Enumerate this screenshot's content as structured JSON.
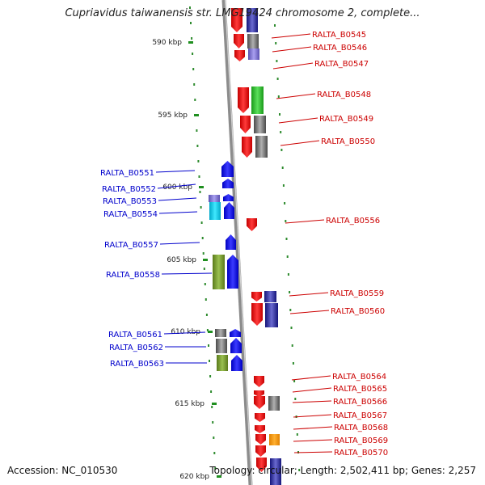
{
  "title": "Cupriavidus taiwanensis str. LMG19424 chromosome 2, complete...",
  "footer": {
    "accession": "Accession: NC_010530",
    "summary": "Topology: circular; Length: 2,502,411 bp; Genes: 2,257"
  },
  "scale_ticks": [
    {
      "label": "590 kbp",
      "kbp": 590
    },
    {
      "label": "595 kbp",
      "kbp": 595
    },
    {
      "label": "600 kbp",
      "kbp": 600
    },
    {
      "label": "605 kbp",
      "kbp": 605
    },
    {
      "label": "610 kbp",
      "kbp": 610
    },
    {
      "label": "615 kbp",
      "kbp": 615
    },
    {
      "label": "620 kbp",
      "kbp": 620
    }
  ],
  "colors": {
    "forward_gene": "#0000ee",
    "reverse_gene": "#ee0000",
    "forward_label": "#0000cc",
    "reverse_label": "#cc0000",
    "backbone": "#8c8c8c"
  },
  "genes_forward": [
    {
      "id": "RALTA_B0551"
    },
    {
      "id": "RALTA_B0552"
    },
    {
      "id": "RALTA_B0553"
    },
    {
      "id": "RALTA_B0554"
    },
    {
      "id": "RALTA_B0557"
    },
    {
      "id": "RALTA_B0558"
    },
    {
      "id": "RALTA_B0561"
    },
    {
      "id": "RALTA_B0562"
    },
    {
      "id": "RALTA_B0563"
    }
  ],
  "genes_reverse": [
    {
      "id": "RALTA_B0545"
    },
    {
      "id": "RALTA_B0546"
    },
    {
      "id": "RALTA_B0547"
    },
    {
      "id": "RALTA_B0548"
    },
    {
      "id": "RALTA_B0549"
    },
    {
      "id": "RALTA_B0550"
    },
    {
      "id": "RALTA_B0556"
    },
    {
      "id": "RALTA_B0559"
    },
    {
      "id": "RALTA_B0560"
    },
    {
      "id": "RALTA_B0564"
    },
    {
      "id": "RALTA_B0565"
    },
    {
      "id": "RALTA_B0566"
    },
    {
      "id": "RALTA_B0567"
    },
    {
      "id": "RALTA_B0568"
    },
    {
      "id": "RALTA_B0569"
    },
    {
      "id": "RALTA_B0570"
    }
  ]
}
